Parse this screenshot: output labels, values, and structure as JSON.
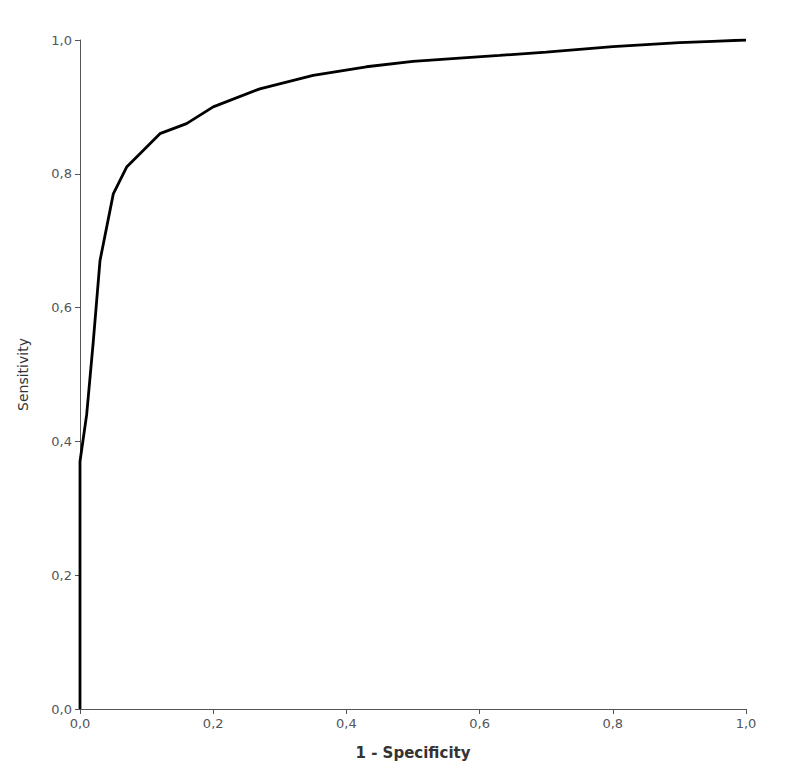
{
  "chart_data": {
    "type": "line",
    "x": [
      0.0,
      0.0,
      0.01,
      0.02,
      0.03,
      0.05,
      0.07,
      0.09,
      0.12,
      0.16,
      0.2,
      0.27,
      0.35,
      0.43,
      0.5,
      0.57,
      0.63,
      0.7,
      0.75,
      0.8,
      0.85,
      0.9,
      0.95,
      1.0
    ],
    "values": [
      0.0,
      0.37,
      0.44,
      0.55,
      0.67,
      0.77,
      0.81,
      0.83,
      0.86,
      0.875,
      0.9,
      0.927,
      0.947,
      0.96,
      0.968,
      0.973,
      0.977,
      0.982,
      0.986,
      0.99,
      0.993,
      0.996,
      0.998,
      1.0
    ],
    "color": "#000000",
    "xlabel": "1 - Specificity",
    "ylabel": "Sensitivity",
    "xlim": [
      0.0,
      1.0
    ],
    "ylim": [
      0.0,
      1.0
    ],
    "xticks": [
      {
        "value": 0.0,
        "label": "0,0"
      },
      {
        "value": 0.2,
        "label": "0,2"
      },
      {
        "value": 0.4,
        "label": "0,4"
      },
      {
        "value": 0.6,
        "label": "0,6"
      },
      {
        "value": 0.8,
        "label": "0,8"
      },
      {
        "value": 1.0,
        "label": "1,0"
      }
    ],
    "yticks": [
      {
        "value": 0.0,
        "label": "0,0"
      },
      {
        "value": 0.2,
        "label": "0,2"
      },
      {
        "value": 0.4,
        "label": "0,4"
      },
      {
        "value": 0.6,
        "label": "0,6"
      },
      {
        "value": 0.8,
        "label": "0,8"
      },
      {
        "value": 1.0,
        "label": "1,0"
      }
    ],
    "grid": false
  }
}
